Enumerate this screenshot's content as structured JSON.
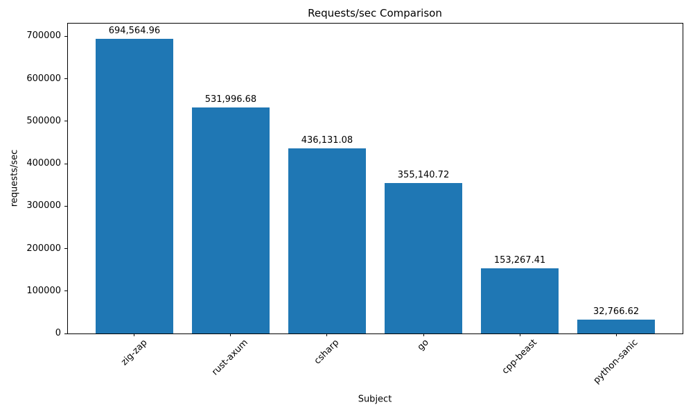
{
  "window": {
    "background_color": "#ffffff"
  },
  "chart_data": {
    "type": "bar",
    "title": "Requests/sec Comparison",
    "xlabel": "Subject",
    "ylabel": "requests/sec",
    "categories": [
      "zig-zap",
      "rust-axum",
      "csharp",
      "go",
      "cpp-beast",
      "python-sanic"
    ],
    "values": [
      694564.96,
      531996.68,
      436131.08,
      355140.72,
      153267.41,
      32766.62
    ],
    "bar_labels": [
      "694,564.96",
      "531,996.68",
      "436,131.08",
      "355,140.72",
      "153,267.41",
      "32,766.62"
    ],
    "bar_color": "#1f77b4",
    "axis_color": "#000000",
    "text_color": "#000000",
    "ylim": [
      0,
      730000
    ],
    "yticks": [
      0,
      100000,
      200000,
      300000,
      400000,
      500000,
      600000,
      700000
    ],
    "ytick_labels": [
      "0",
      "100000",
      "200000",
      "300000",
      "400000",
      "500000",
      "600000",
      "700000"
    ],
    "xlim": [
      -0.69,
      5.69
    ],
    "bar_width_fraction": 0.8,
    "x_tick_rotation_deg": 45,
    "grid": false,
    "legend_position": "none"
  }
}
